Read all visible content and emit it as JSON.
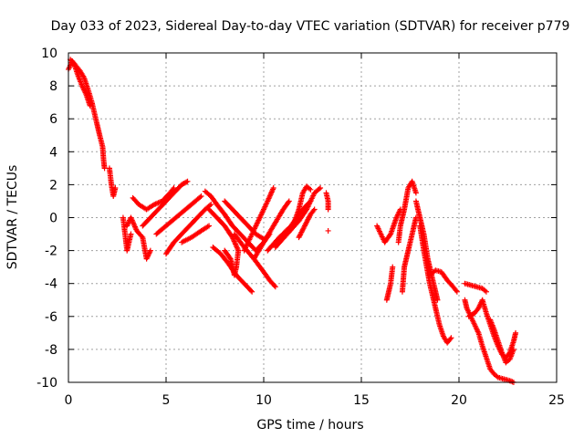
{
  "chart_data": {
    "type": "scatter",
    "title": "Day 033 of 2023, Sidereal Day-to-day VTEC variation (SDTVAR) for receiver p779",
    "xlabel": "GPS time / hours",
    "ylabel": "SDTVAR / TECUs",
    "xlim": [
      0,
      25
    ],
    "ylim": [
      -10,
      10
    ],
    "xticks": [
      0,
      5,
      10,
      15,
      20,
      25
    ],
    "yticks": [
      -10,
      -8,
      -6,
      -4,
      -2,
      0,
      2,
      4,
      6,
      8,
      10
    ],
    "xtick_labels": [
      "0",
      "5",
      "10",
      "15",
      "20",
      "25"
    ],
    "ytick_labels": [
      "-10",
      "-8",
      "-6",
      "-4",
      "-2",
      "0",
      "2",
      "4",
      "6",
      "8",
      "10"
    ],
    "grid": true,
    "marker": "plus",
    "color": "#ff0000",
    "series": [
      {
        "name": "SDTVAR",
        "segments": [
          [
            [
              0.0,
              9.0
            ],
            [
              0.2,
              9.5
            ],
            [
              0.4,
              9.2
            ],
            [
              0.6,
              8.9
            ],
            [
              0.8,
              8.5
            ],
            [
              1.0,
              7.8
            ],
            [
              1.2,
              7.0
            ],
            [
              1.4,
              6.0
            ],
            [
              1.6,
              5.0
            ],
            [
              1.75,
              4.3
            ],
            [
              1.8,
              3.5
            ],
            [
              1.85,
              3.0
            ]
          ],
          [
            [
              0.1,
              9.6
            ],
            [
              0.3,
              9.3
            ],
            [
              0.5,
              8.6
            ],
            [
              0.7,
              8.0
            ],
            [
              0.9,
              7.5
            ],
            [
              1.1,
              6.8
            ]
          ],
          [
            [
              2.1,
              3.0
            ],
            [
              2.2,
              2.0
            ],
            [
              2.3,
              1.3
            ],
            [
              2.4,
              1.8
            ]
          ],
          [
            [
              2.8,
              0.0
            ],
            [
              2.9,
              -1.0
            ],
            [
              3.0,
              -2.0
            ],
            [
              3.1,
              -1.5
            ],
            [
              3.2,
              -1.0
            ]
          ],
          [
            [
              3.0,
              -0.5
            ],
            [
              3.2,
              0.0
            ],
            [
              3.5,
              -0.8
            ],
            [
              3.8,
              -1.2
            ],
            [
              4.0,
              -2.5
            ],
            [
              4.2,
              -2.0
            ]
          ],
          [
            [
              3.3,
              1.2
            ],
            [
              3.6,
              0.8
            ],
            [
              4.0,
              0.5
            ],
            [
              4.4,
              0.8
            ],
            [
              4.8,
              1.0
            ],
            [
              5.2,
              1.5
            ],
            [
              5.4,
              1.8
            ]
          ],
          [
            [
              3.8,
              -0.5
            ],
            [
              4.2,
              0.0
            ],
            [
              4.6,
              0.5
            ],
            [
              5.0,
              1.0
            ],
            [
              5.4,
              1.5
            ],
            [
              5.8,
              2.0
            ],
            [
              6.1,
              2.2
            ]
          ],
          [
            [
              4.5,
              -1.0
            ],
            [
              5.0,
              -0.5
            ],
            [
              5.5,
              0.0
            ],
            [
              6.0,
              0.5
            ],
            [
              6.5,
              1.0
            ],
            [
              6.8,
              1.3
            ]
          ],
          [
            [
              5.0,
              -2.2
            ],
            [
              5.4,
              -1.5
            ],
            [
              5.8,
              -1.0
            ],
            [
              6.2,
              -0.5
            ],
            [
              6.6,
              0.0
            ],
            [
              7.0,
              0.5
            ],
            [
              7.3,
              0.8
            ]
          ],
          [
            [
              5.8,
              -1.5
            ],
            [
              6.3,
              -1.2
            ],
            [
              6.8,
              -0.8
            ],
            [
              7.2,
              -0.5
            ]
          ],
          [
            [
              7.0,
              1.6
            ],
            [
              7.3,
              1.3
            ],
            [
              7.6,
              0.8
            ],
            [
              8.0,
              0.2
            ],
            [
              8.4,
              -0.5
            ],
            [
              8.8,
              -1.0
            ],
            [
              9.2,
              -1.5
            ],
            [
              9.6,
              -2.0
            ],
            [
              10.0,
              -1.5
            ],
            [
              10.3,
              -1.0
            ]
          ],
          [
            [
              7.2,
              0.5
            ],
            [
              7.6,
              0.0
            ],
            [
              8.0,
              -0.5
            ],
            [
              8.4,
              -1.2
            ],
            [
              8.7,
              -2.0
            ],
            [
              8.6,
              -3.0
            ],
            [
              8.5,
              -3.5
            ],
            [
              8.3,
              -2.5
            ],
            [
              8.0,
              -2.0
            ]
          ],
          [
            [
              7.4,
              -1.8
            ],
            [
              7.8,
              -2.2
            ],
            [
              8.2,
              -2.8
            ],
            [
              8.6,
              -3.5
            ],
            [
              9.0,
              -4.0
            ],
            [
              9.4,
              -4.5
            ]
          ],
          [
            [
              8.5,
              -1.0
            ],
            [
              9.0,
              -1.8
            ],
            [
              9.5,
              -2.5
            ],
            [
              10.0,
              -3.3
            ],
            [
              10.3,
              -3.8
            ],
            [
              10.6,
              -4.2
            ]
          ],
          [
            [
              8.0,
              1.0
            ],
            [
              8.4,
              0.5
            ],
            [
              8.8,
              0.0
            ],
            [
              9.2,
              -0.5
            ],
            [
              9.6,
              -1.0
            ],
            [
              10.0,
              -1.3
            ]
          ],
          [
            [
              9.0,
              -2.0
            ],
            [
              9.4,
              -1.0
            ],
            [
              9.8,
              0.0
            ],
            [
              10.2,
              1.0
            ],
            [
              10.5,
              1.8
            ]
          ],
          [
            [
              9.5,
              -2.5
            ],
            [
              10.0,
              -1.5
            ],
            [
              10.5,
              -0.5
            ],
            [
              11.0,
              0.5
            ],
            [
              11.3,
              1.0
            ]
          ],
          [
            [
              10.2,
              -2.0
            ],
            [
              10.8,
              -1.2
            ],
            [
              11.4,
              -0.5
            ],
            [
              12.0,
              0.5
            ],
            [
              12.4,
              1.0
            ]
          ],
          [
            [
              10.6,
              -1.8
            ],
            [
              11.2,
              -1.0
            ],
            [
              11.8,
              -0.2
            ],
            [
              12.2,
              0.5
            ],
            [
              12.6,
              1.5
            ],
            [
              12.9,
              1.8
            ]
          ],
          [
            [
              11.5,
              -0.5
            ],
            [
              11.8,
              0.5
            ],
            [
              12.0,
              1.5
            ],
            [
              12.2,
              1.9
            ],
            [
              12.4,
              1.7
            ]
          ],
          [
            [
              11.8,
              -1.2
            ],
            [
              12.1,
              -0.5
            ],
            [
              12.4,
              0.2
            ],
            [
              12.6,
              0.5
            ]
          ],
          [
            [
              13.2,
              1.5
            ],
            [
              13.3,
              1.0
            ],
            [
              13.3,
              0.5
            ]
          ],
          [
            [
              13.3,
              -0.8
            ]
          ],
          [
            [
              15.8,
              -0.5
            ],
            [
              16.0,
              -1.0
            ],
            [
              16.2,
              -1.5
            ],
            [
              16.5,
              -1.0
            ],
            [
              16.8,
              0.0
            ],
            [
              17.0,
              0.5
            ]
          ],
          [
            [
              16.3,
              -5.0
            ],
            [
              16.5,
              -4.0
            ],
            [
              16.6,
              -3.0
            ]
          ],
          [
            [
              16.9,
              -1.5
            ],
            [
              17.0,
              -0.5
            ],
            [
              17.2,
              0.5
            ],
            [
              17.4,
              1.8
            ],
            [
              17.6,
              2.2
            ],
            [
              17.8,
              1.5
            ]
          ],
          [
            [
              17.1,
              -4.5
            ],
            [
              17.2,
              -3.0
            ],
            [
              17.4,
              -2.0
            ],
            [
              17.6,
              -1.0
            ],
            [
              17.8,
              0.0
            ]
          ],
          [
            [
              17.8,
              1.0
            ],
            [
              18.0,
              0.0
            ],
            [
              18.2,
              -1.0
            ],
            [
              18.4,
              -2.5
            ],
            [
              18.6,
              -3.5
            ],
            [
              18.8,
              -4.5
            ],
            [
              18.9,
              -5.0
            ]
          ],
          [
            [
              18.0,
              -0.5
            ],
            [
              18.2,
              -2.0
            ],
            [
              18.5,
              -4.0
            ],
            [
              18.8,
              -5.5
            ],
            [
              19.0,
              -6.5
            ],
            [
              19.2,
              -7.2
            ],
            [
              19.4,
              -7.6
            ],
            [
              19.6,
              -7.3
            ]
          ],
          [
            [
              18.5,
              -3.5
            ],
            [
              18.8,
              -3.2
            ],
            [
              19.1,
              -3.3
            ],
            [
              19.4,
              -3.8
            ],
            [
              19.7,
              -4.2
            ],
            [
              19.9,
              -4.5
            ]
          ],
          [
            [
              20.3,
              -5.0
            ],
            [
              20.4,
              -5.5
            ],
            [
              20.6,
              -6.0
            ],
            [
              20.8,
              -6.5
            ],
            [
              21.0,
              -7.0
            ],
            [
              21.2,
              -7.8
            ],
            [
              21.4,
              -8.5
            ],
            [
              21.6,
              -9.2
            ],
            [
              21.8,
              -9.5
            ],
            [
              22.0,
              -9.7
            ],
            [
              22.3,
              -9.8
            ],
            [
              22.6,
              -9.9
            ],
            [
              22.8,
              -10.0
            ]
          ],
          [
            [
              20.3,
              -4.0
            ],
            [
              20.6,
              -4.1
            ],
            [
              20.9,
              -4.2
            ],
            [
              21.2,
              -4.3
            ],
            [
              21.4,
              -4.5
            ]
          ],
          [
            [
              20.5,
              -6.0
            ],
            [
              20.8,
              -5.8
            ],
            [
              21.0,
              -5.5
            ],
            [
              21.2,
              -5.0
            ],
            [
              21.4,
              -5.8
            ],
            [
              21.6,
              -6.5
            ],
            [
              21.8,
              -7.2
            ],
            [
              22.0,
              -7.8
            ],
            [
              22.2,
              -8.3
            ],
            [
              22.4,
              -8.5
            ],
            [
              22.6,
              -8.2
            ],
            [
              22.8,
              -7.5
            ],
            [
              22.9,
              -7.0
            ]
          ],
          [
            [
              21.6,
              -6.2
            ],
            [
              21.8,
              -6.8
            ],
            [
              22.0,
              -7.5
            ],
            [
              22.2,
              -8.2
            ],
            [
              22.4,
              -8.8
            ],
            [
              22.6,
              -8.6
            ],
            [
              22.8,
              -8.0
            ]
          ]
        ]
      }
    ]
  }
}
